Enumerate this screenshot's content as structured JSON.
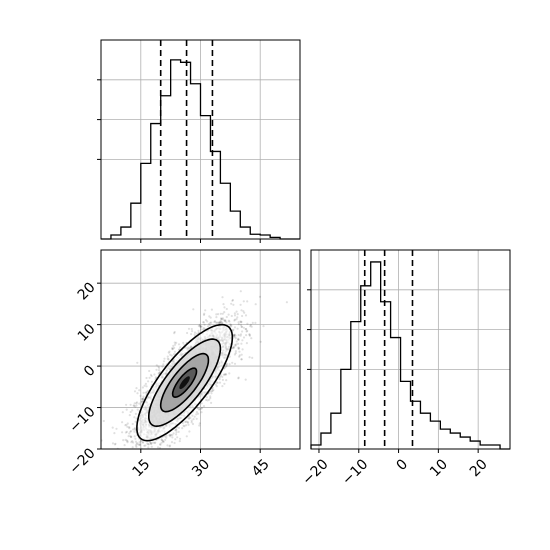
{
  "chart_data": {
    "type": "corner",
    "panels": [
      {
        "panel": "x-marginal",
        "type": "histogram",
        "xlim": [
          5,
          55
        ],
        "bin_edges": [
          5,
          7.5,
          10,
          12.5,
          15,
          17.5,
          20,
          22.5,
          25,
          27.5,
          30,
          32.5,
          35,
          37.5,
          40,
          42.5,
          45,
          47.5,
          50,
          52.5,
          55
        ],
        "counts": [
          0,
          0.5,
          1.5,
          4.5,
          9.5,
          14.5,
          18,
          22.5,
          22.2,
          19.5,
          15.5,
          11,
          7,
          3.5,
          1.5,
          0.6,
          0.5,
          0.2,
          0,
          0
        ],
        "ylim": [
          0,
          25
        ],
        "quantiles": [
          20,
          26.5,
          33
        ]
      },
      {
        "panel": "joint",
        "type": "scatter+contour",
        "xlim": [
          5,
          55
        ],
        "ylim": [
          -20,
          28
        ],
        "xticks": [
          "15",
          "30",
          "45"
        ],
        "yticks": [
          "−20",
          "−10",
          "0",
          "10",
          "20"
        ],
        "center": [
          26,
          -4
        ],
        "std": [
          6,
          7
        ],
        "correlation": 0.78,
        "n_points": 4000,
        "contour_levels": [
          "0.5σ",
          "1σ",
          "1.5σ",
          "2σ"
        ]
      },
      {
        "panel": "y-marginal",
        "type": "histogram",
        "xlim": [
          -22,
          28
        ],
        "xticks": [
          "−20",
          "−10",
          "0",
          "10",
          "20"
        ],
        "bin_edges": [
          -22,
          -19.5,
          -17,
          -14.5,
          -12,
          -9.5,
          -7,
          -4.5,
          -2,
          0.5,
          3,
          5.5,
          8,
          10.5,
          13,
          15.5,
          18,
          20.5,
          23,
          25.5,
          28
        ],
        "counts": [
          0.5,
          2,
          4.5,
          10,
          16,
          20.5,
          23.5,
          18.5,
          14,
          8.5,
          6,
          4.5,
          3.5,
          2.5,
          2,
          1.5,
          1,
          0.5,
          0.5,
          0
        ],
        "ylim": [
          0,
          25
        ],
        "quantiles": [
          -8.5,
          -3.5,
          3.5
        ]
      }
    ]
  }
}
